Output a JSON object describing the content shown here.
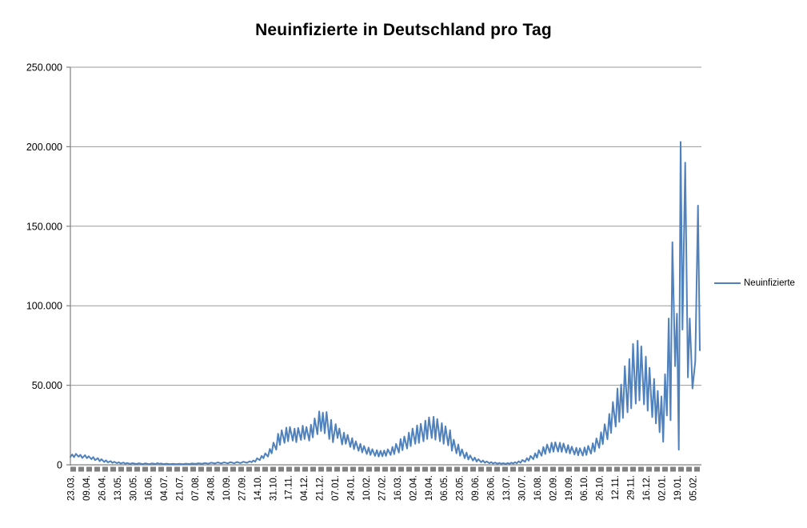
{
  "title": "Neuinfizierte in Deutschland pro Tag",
  "legend": {
    "label": "Neuinfizierte",
    "color": "#4F81BD",
    "position": "right"
  },
  "colors": {
    "line": "#4F81BD",
    "gridline": "#999999",
    "axis": "#808080",
    "category_tick_strip": "#808080",
    "text": "#000000",
    "background": "#FFFFFF"
  },
  "chart_data": {
    "type": "line",
    "title": "Neuinfizierte in Deutschland pro Tag",
    "xlabel": "",
    "ylabel": "",
    "ylim": [
      0,
      250000
    ],
    "grid": true,
    "legend_position": "right",
    "y_tick_labels": [
      "0",
      "50.000",
      "100.000",
      "150.000",
      "200.000",
      "250.000"
    ],
    "y_tick_values": [
      0,
      50000,
      100000,
      150000,
      200000,
      250000
    ],
    "x_tick_labels": [
      "23.03.",
      "09.04.",
      "26.04.",
      "13.05.",
      "30.05.",
      "16.06.",
      "04.07.",
      "21.07.",
      "07.08.",
      "24.08.",
      "10.09.",
      "27.09.",
      "14.10.",
      "31.10.",
      "17.11.",
      "04.12.",
      "21.12.",
      "07.01.",
      "24.01.",
      "10.02.",
      "27.02.",
      "16.03.",
      "02.04.",
      "19.04.",
      "06.05.",
      "23.05.",
      "09.06.",
      "26.06.",
      "13.07.",
      "30.07.",
      "16.08.",
      "02.09.",
      "19.09.",
      "06.10.",
      "26.10.",
      "12.11.",
      "29.11.",
      "16.12.",
      "02.01.",
      "19.01.",
      "05.02."
    ],
    "x_tick_interval_days": 17,
    "total_days": 688,
    "series": [
      {
        "name": "Neuinfizierte",
        "color": "#4F81BD",
        "points": [
          [
            0,
            5000
          ],
          [
            2,
            6500
          ],
          [
            4,
            4800
          ],
          [
            6,
            6900
          ],
          [
            9,
            5100
          ],
          [
            11,
            6300
          ],
          [
            13,
            4300
          ],
          [
            16,
            6100
          ],
          [
            18,
            4100
          ],
          [
            20,
            5400
          ],
          [
            23,
            3500
          ],
          [
            25,
            4900
          ],
          [
            27,
            2900
          ],
          [
            30,
            4200
          ],
          [
            32,
            2300
          ],
          [
            34,
            3500
          ],
          [
            37,
            1800
          ],
          [
            39,
            2800
          ],
          [
            41,
            1500
          ],
          [
            44,
            2300
          ],
          [
            46,
            1200
          ],
          [
            48,
            1900
          ],
          [
            51,
            1000
          ],
          [
            53,
            1600
          ],
          [
            55,
            800
          ],
          [
            58,
            1400
          ],
          [
            60,
            650
          ],
          [
            62,
            1150
          ],
          [
            65,
            550
          ],
          [
            68,
            1000
          ],
          [
            72,
            500
          ],
          [
            75,
            950
          ],
          [
            79,
            450
          ],
          [
            82,
            900
          ],
          [
            86,
            420
          ],
          [
            89,
            850
          ],
          [
            93,
            500
          ],
          [
            95,
            1000
          ],
          [
            97,
            600
          ],
          [
            99,
            850
          ],
          [
            102,
            450
          ],
          [
            105,
            700
          ],
          [
            109,
            400
          ],
          [
            112,
            650
          ],
          [
            116,
            380
          ],
          [
            119,
            620
          ],
          [
            123,
            420
          ],
          [
            126,
            720
          ],
          [
            130,
            480
          ],
          [
            133,
            820
          ],
          [
            137,
            540
          ],
          [
            140,
            980
          ],
          [
            144,
            620
          ],
          [
            147,
            1120
          ],
          [
            151,
            700
          ],
          [
            154,
            1350
          ],
          [
            158,
            820
          ],
          [
            161,
            1500
          ],
          [
            165,
            880
          ],
          [
            168,
            1550
          ],
          [
            172,
            920
          ],
          [
            175,
            1650
          ],
          [
            179,
            980
          ],
          [
            182,
            1750
          ],
          [
            186,
            1050
          ],
          [
            189,
            1900
          ],
          [
            193,
            1250
          ],
          [
            196,
            2200
          ],
          [
            198,
            1600
          ],
          [
            200,
            2700
          ],
          [
            202,
            1900
          ],
          [
            204,
            4100
          ],
          [
            207,
            2900
          ],
          [
            209,
            5600
          ],
          [
            211,
            4100
          ],
          [
            213,
            7200
          ],
          [
            216,
            5200
          ],
          [
            218,
            10000
          ],
          [
            220,
            7200
          ],
          [
            222,
            14000
          ],
          [
            225,
            9500
          ],
          [
            227,
            19500
          ],
          [
            229,
            12500
          ],
          [
            231,
            21800
          ],
          [
            234,
            13800
          ],
          [
            236,
            23400
          ],
          [
            238,
            14800
          ],
          [
            240,
            23800
          ],
          [
            243,
            15200
          ],
          [
            245,
            22800
          ],
          [
            247,
            14200
          ],
          [
            249,
            23200
          ],
          [
            252,
            15600
          ],
          [
            254,
            24600
          ],
          [
            256,
            16200
          ],
          [
            258,
            23800
          ],
          [
            261,
            15200
          ],
          [
            263,
            25200
          ],
          [
            265,
            17200
          ],
          [
            267,
            29200
          ],
          [
            270,
            19200
          ],
          [
            272,
            33600
          ],
          [
            274,
            21200
          ],
          [
            276,
            32800
          ],
          [
            278,
            19800
          ],
          [
            280,
            33200
          ],
          [
            283,
            16200
          ],
          [
            285,
            28200
          ],
          [
            287,
            14200
          ],
          [
            290,
            25600
          ],
          [
            292,
            16800
          ],
          [
            294,
            22800
          ],
          [
            297,
            12800
          ],
          [
            299,
            20200
          ],
          [
            301,
            13200
          ],
          [
            303,
            18800
          ],
          [
            306,
            11200
          ],
          [
            308,
            16800
          ],
          [
            310,
            9800
          ],
          [
            312,
            14800
          ],
          [
            315,
            8800
          ],
          [
            317,
            13200
          ],
          [
            319,
            7800
          ],
          [
            321,
            11800
          ],
          [
            324,
            6800
          ],
          [
            326,
            10800
          ],
          [
            328,
            6200
          ],
          [
            330,
            9800
          ],
          [
            333,
            5600
          ],
          [
            335,
            9200
          ],
          [
            337,
            5200
          ],
          [
            339,
            8800
          ],
          [
            341,
            5400
          ],
          [
            343,
            9000
          ],
          [
            345,
            5600
          ],
          [
            347,
            9700
          ],
          [
            350,
            6200
          ],
          [
            352,
            11200
          ],
          [
            354,
            6700
          ],
          [
            356,
            13200
          ],
          [
            359,
            7700
          ],
          [
            361,
            16200
          ],
          [
            363,
            9200
          ],
          [
            365,
            17800
          ],
          [
            368,
            10200
          ],
          [
            370,
            20200
          ],
          [
            372,
            11700
          ],
          [
            374,
            22800
          ],
          [
            377,
            13200
          ],
          [
            379,
            24800
          ],
          [
            381,
            13800
          ],
          [
            383,
            25800
          ],
          [
            386,
            14800
          ],
          [
            388,
            27800
          ],
          [
            390,
            16200
          ],
          [
            392,
            29800
          ],
          [
            395,
            16800
          ],
          [
            397,
            30200
          ],
          [
            399,
            15800
          ],
          [
            401,
            28800
          ],
          [
            404,
            14800
          ],
          [
            406,
            26200
          ],
          [
            408,
            13200
          ],
          [
            410,
            24200
          ],
          [
            413,
            12200
          ],
          [
            415,
            21800
          ],
          [
            417,
            8800
          ],
          [
            419,
            15800
          ],
          [
            422,
            7200
          ],
          [
            424,
            12800
          ],
          [
            426,
            5700
          ],
          [
            428,
            9700
          ],
          [
            431,
            4200
          ],
          [
            433,
            7700
          ],
          [
            435,
            3300
          ],
          [
            437,
            5900
          ],
          [
            440,
            2600
          ],
          [
            442,
            4600
          ],
          [
            444,
            2000
          ],
          [
            446,
            3500
          ],
          [
            449,
            1600
          ],
          [
            451,
            2700
          ],
          [
            453,
            1300
          ],
          [
            455,
            2100
          ],
          [
            458,
            1000
          ],
          [
            460,
            1700
          ],
          [
            462,
            800
          ],
          [
            464,
            1400
          ],
          [
            467,
            650
          ],
          [
            469,
            1200
          ],
          [
            471,
            580
          ],
          [
            473,
            1050
          ],
          [
            476,
            560
          ],
          [
            478,
            1100
          ],
          [
            480,
            620
          ],
          [
            482,
            1350
          ],
          [
            484,
            780
          ],
          [
            486,
            1650
          ],
          [
            488,
            950
          ],
          [
            490,
            2200
          ],
          [
            492,
            1250
          ],
          [
            494,
            3000
          ],
          [
            497,
            1900
          ],
          [
            499,
            4200
          ],
          [
            501,
            2600
          ],
          [
            503,
            5600
          ],
          [
            506,
            3500
          ],
          [
            508,
            7200
          ],
          [
            510,
            4500
          ],
          [
            512,
            9200
          ],
          [
            515,
            5700
          ],
          [
            517,
            11200
          ],
          [
            519,
            6800
          ],
          [
            521,
            12800
          ],
          [
            524,
            7700
          ],
          [
            526,
            13900
          ],
          [
            528,
            8200
          ],
          [
            530,
            14200
          ],
          [
            533,
            8300
          ],
          [
            535,
            13900
          ],
          [
            537,
            8100
          ],
          [
            539,
            13400
          ],
          [
            542,
            7700
          ],
          [
            544,
            12400
          ],
          [
            546,
            7100
          ],
          [
            548,
            11400
          ],
          [
            551,
            6500
          ],
          [
            553,
            10700
          ],
          [
            555,
            6000
          ],
          [
            557,
            10400
          ],
          [
            560,
            5800
          ],
          [
            562,
            10900
          ],
          [
            564,
            6200
          ],
          [
            566,
            11900
          ],
          [
            569,
            7000
          ],
          [
            571,
            13600
          ],
          [
            573,
            8300
          ],
          [
            575,
            16600
          ],
          [
            578,
            10600
          ],
          [
            580,
            20500
          ],
          [
            582,
            13000
          ],
          [
            584,
            25500
          ],
          [
            587,
            16000
          ],
          [
            589,
            32000
          ],
          [
            591,
            20000
          ],
          [
            593,
            39500
          ],
          [
            596,
            24000
          ],
          [
            598,
            48000
          ],
          [
            600,
            27000
          ],
          [
            602,
            50500
          ],
          [
            604,
            29500
          ],
          [
            606,
            62000
          ],
          [
            609,
            33000
          ],
          [
            611,
            66500
          ],
          [
            613,
            35500
          ],
          [
            615,
            76000
          ],
          [
            618,
            38500
          ],
          [
            620,
            78000
          ],
          [
            622,
            40500
          ],
          [
            624,
            74500
          ],
          [
            627,
            38000
          ],
          [
            629,
            68000
          ],
          [
            631,
            34000
          ],
          [
            633,
            61000
          ],
          [
            636,
            30000
          ],
          [
            638,
            54000
          ],
          [
            640,
            26000
          ],
          [
            642,
            46500
          ],
          [
            644,
            20500
          ],
          [
            646,
            43000
          ],
          [
            648,
            14500
          ],
          [
            650,
            57000
          ],
          [
            652,
            31000
          ],
          [
            654,
            92000
          ],
          [
            656,
            28000
          ],
          [
            658,
            140000
          ],
          [
            661,
            62000
          ],
          [
            663,
            95000
          ],
          [
            665,
            9500
          ],
          [
            667,
            203000
          ],
          [
            669,
            85000
          ],
          [
            672,
            190000
          ],
          [
            675,
            55000
          ],
          [
            677,
            92000
          ],
          [
            680,
            48000
          ],
          [
            683,
            65000
          ],
          [
            686,
            163000
          ],
          [
            688,
            72000
          ]
        ]
      }
    ]
  }
}
